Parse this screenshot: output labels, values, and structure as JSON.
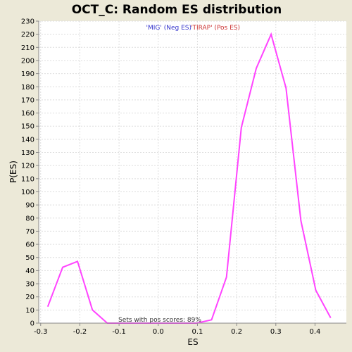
{
  "chart_data": {
    "type": "line",
    "title": "OCT_C: Random ES distribution",
    "xlabel": "ES",
    "ylabel": "P(ES)",
    "xlim": [
      -0.305,
      0.48
    ],
    "ylim": [
      0,
      230
    ],
    "xticks": [
      -0.3,
      -0.2,
      -0.1,
      0.0,
      0.1,
      0.2,
      0.3,
      0.4
    ],
    "xtick_labels": [
      "-0.3",
      "-0.2",
      "-0.1",
      "0.0",
      "0.1",
      "0.2",
      "0.3",
      "0.4"
    ],
    "yticks": [
      0,
      10,
      20,
      30,
      40,
      50,
      60,
      70,
      80,
      90,
      100,
      110,
      120,
      130,
      140,
      150,
      160,
      170,
      180,
      190,
      200,
      210,
      220,
      230
    ],
    "grid": true,
    "line_color": "#FF44FF",
    "series": [
      {
        "x": [
          -0.282,
          -0.244,
          -0.206,
          -0.168,
          -0.13,
          -0.092,
          -0.054,
          -0.016,
          0.022,
          0.06,
          0.098,
          0.136,
          0.174,
          0.212,
          0.25,
          0.288,
          0.326,
          0.364,
          0.402,
          0.44
        ],
        "y": [
          12.5,
          42.5,
          47,
          10,
          0,
          0,
          0,
          0,
          0,
          0,
          0,
          2.5,
          35,
          149,
          194,
          220,
          179,
          78,
          25,
          4
        ]
      }
    ],
    "annotations": {
      "neg_label": "'MIG' (Neg ES)",
      "neg_color": "#3333CC",
      "pos_label": "'TIRAP' (Pos ES)",
      "pos_color": "#CC3333",
      "footer": "Sets with pos scores: 89%"
    }
  }
}
